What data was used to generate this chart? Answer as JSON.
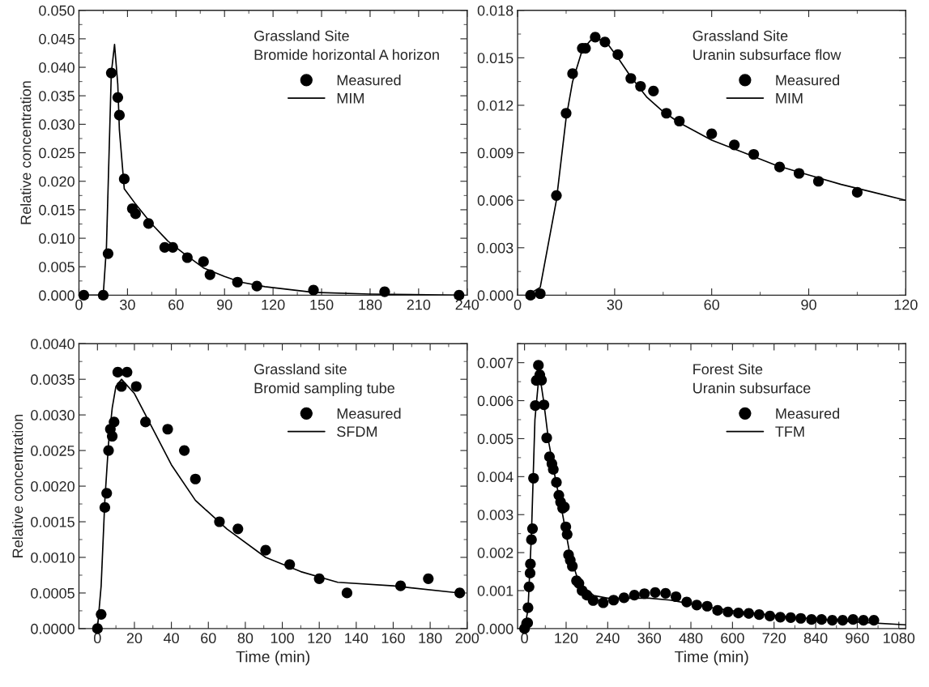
{
  "chart_data": [
    {
      "type": "scatter",
      "ylabel": "Relative concentration",
      "annotations": [
        "Grassland Site\nBromide horizontal A horizon"
      ],
      "legend": "top right",
      "xlim": [
        0,
        240
      ],
      "xticks": [
        0,
        30,
        60,
        90,
        120,
        150,
        180,
        210,
        240
      ],
      "ylim": [
        0,
        0.05
      ],
      "yticks": [
        {
          "value": 0,
          "label": "0.000"
        },
        {
          "value": 0.005,
          "label": "0.005"
        },
        {
          "value": 0.01,
          "label": "0.010"
        },
        {
          "value": 0.015,
          "label": "0.015"
        },
        {
          "value": 0.02,
          "label": "0.020"
        },
        {
          "value": 0.025,
          "label": "0.025"
        },
        {
          "value": 0.03,
          "label": "0.030"
        },
        {
          "value": 0.035,
          "label": "0.035"
        },
        {
          "value": 0.04,
          "label": "0.040"
        },
        {
          "value": 0.045,
          "label": "0.045"
        },
        {
          "value": 0.05,
          "label": "0.050"
        }
      ],
      "series": [
        {
          "name": "Measured",
          "marker": "circle",
          "color": "#000000",
          "x": [
            3,
            15,
            18,
            20,
            24,
            25,
            28,
            33,
            35,
            43,
            53,
            58,
            67,
            77,
            81,
            98,
            110,
            145,
            189,
            235
          ],
          "values": [
            0,
            0,
            0.0073,
            0.039,
            0.0347,
            0.0316,
            0.0204,
            0.0152,
            0.0143,
            0.0126,
            0.0084,
            0.0084,
            0.0066,
            0.0059,
            0.0036,
            0.0023,
            0.0016,
            0.0009,
            0.0006,
            0
          ]
        },
        {
          "name": "MIM",
          "type": "line",
          "color": "#000000",
          "x": [
            0,
            15,
            17,
            20,
            22,
            24,
            25,
            28,
            35,
            45,
            55,
            65,
            77,
            90,
            100,
            115,
            145,
            180,
            235
          ],
          "values": [
            0,
            0,
            0.0085,
            0.039,
            0.044,
            0.037,
            0.029,
            0.0187,
            0.016,
            0.0125,
            0.0095,
            0.0073,
            0.0048,
            0.0033,
            0.0023,
            0.0015,
            0.0005,
            0.0002,
            0
          ]
        }
      ]
    },
    {
      "type": "scatter",
      "annotations": [
        "Grassland Site\nUranin subsurface flow"
      ],
      "legend": "top right",
      "xlim": [
        0,
        120
      ],
      "xticks": [
        0,
        30,
        60,
        90,
        120
      ],
      "ylim": [
        0,
        0.018
      ],
      "yticks": [
        {
          "value": 0,
          "label": "0.000"
        },
        {
          "value": 0.003,
          "label": "0.003"
        },
        {
          "value": 0.006,
          "label": "0.006"
        },
        {
          "value": 0.009,
          "label": "0.009"
        },
        {
          "value": 0.012,
          "label": "0.012"
        },
        {
          "value": 0.015,
          "label": "0.015"
        },
        {
          "value": 0.018,
          "label": "0.018"
        }
      ],
      "series": [
        {
          "name": "Measured",
          "marker": "circle",
          "color": "#000000",
          "x": [
            4,
            7,
            12,
            15,
            17,
            20,
            21,
            24,
            27,
            31,
            35,
            38,
            42,
            46,
            50,
            60,
            67,
            73,
            81,
            87,
            93,
            105
          ],
          "values": [
            0,
            0.0001,
            0.0063,
            0.0115,
            0.014,
            0.0156,
            0.0156,
            0.0163,
            0.016,
            0.0152,
            0.0137,
            0.0132,
            0.0129,
            0.0115,
            0.011,
            0.0102,
            0.0095,
            0.0089,
            0.0081,
            0.0077,
            0.0072,
            0.0065
          ]
        },
        {
          "name": "MIM",
          "type": "line",
          "color": "#000000",
          "x": [
            3,
            7,
            12,
            15,
            17,
            20,
            23,
            27,
            31,
            35,
            40,
            45,
            50,
            60,
            70,
            80,
            90,
            100,
            110,
            120
          ],
          "values": [
            0,
            0.0005,
            0.006,
            0.0112,
            0.0135,
            0.0155,
            0.0162,
            0.0161,
            0.015,
            0.0138,
            0.0125,
            0.0116,
            0.0109,
            0.0098,
            0.009,
            0.0082,
            0.0076,
            0.007,
            0.0065,
            0.006
          ]
        }
      ]
    },
    {
      "type": "scatter",
      "xlabel": "Time (min)",
      "ylabel": "Relative concentration",
      "annotations": [
        "Grassland site\nBromid sampling tube"
      ],
      "legend": "top right",
      "xlim": [
        -10,
        200
      ],
      "xticks": [
        0,
        20,
        40,
        60,
        80,
        100,
        120,
        140,
        160,
        180,
        200
      ],
      "ylim": [
        0,
        0.004
      ],
      "yticks": [
        {
          "value": 0,
          "label": "0.0000"
        },
        {
          "value": 0.0005,
          "label": "0.0005"
        },
        {
          "value": 0.001,
          "label": "0.0010"
        },
        {
          "value": 0.0015,
          "label": "0.0015"
        },
        {
          "value": 0.002,
          "label": "0.0020"
        },
        {
          "value": 0.0025,
          "label": "0.0025"
        },
        {
          "value": 0.003,
          "label": "0.0030"
        },
        {
          "value": 0.0035,
          "label": "0.0035"
        },
        {
          "value": 0.004,
          "label": "0.0040"
        }
      ],
      "series": [
        {
          "name": "Measured",
          "marker": "circle",
          "color": "#000000",
          "x": [
            0,
            2,
            4,
            5,
            6,
            7,
            8,
            9,
            11,
            13,
            16,
            21,
            26,
            38,
            47,
            53,
            66,
            76,
            91,
            104,
            120,
            135,
            164,
            179,
            196
          ],
          "values": [
            0,
            0.0002,
            0.0017,
            0.0019,
            0.0025,
            0.0028,
            0.0027,
            0.0029,
            0.0036,
            0.0034,
            0.0036,
            0.0034,
            0.0029,
            0.0028,
            0.0025,
            0.0021,
            0.0015,
            0.0014,
            0.0011,
            0.0009,
            0.0007,
            0.0005,
            0.0006,
            0.0007,
            0.0005
          ]
        },
        {
          "name": "SFDM",
          "type": "line",
          "color": "#000000",
          "x": [
            0,
            2,
            4,
            6,
            8,
            10,
            13,
            20,
            30,
            40,
            53,
            70,
            91,
            110,
            130,
            160,
            196
          ],
          "values": [
            0,
            0.0006,
            0.0018,
            0.0026,
            0.0031,
            0.0034,
            0.0035,
            0.0033,
            0.0028,
            0.0023,
            0.0018,
            0.0014,
            0.001,
            0.0008,
            0.00065,
            0.0006,
            0.0005
          ]
        }
      ]
    },
    {
      "type": "scatter",
      "xlabel": "Time (min)",
      "annotations": [
        "Forest Site\nUranin subsurface"
      ],
      "legend": "top right",
      "xlim": [
        -20,
        1100
      ],
      "xticks": [
        0,
        120,
        240,
        360,
        480,
        600,
        720,
        840,
        960,
        1080
      ],
      "ylim": [
        0,
        0.0075
      ],
      "yticks": [
        {
          "value": 0,
          "label": "0.000"
        },
        {
          "value": 0.001,
          "label": "0.001"
        },
        {
          "value": 0.002,
          "label": "0.002"
        },
        {
          "value": 0.003,
          "label": "0.003"
        },
        {
          "value": 0.004,
          "label": "0.004"
        },
        {
          "value": 0.005,
          "label": "0.005"
        },
        {
          "value": 0.006,
          "label": "0.006"
        },
        {
          "value": 0.007,
          "label": "0.007"
        }
      ],
      "series": [
        {
          "name": "Measured",
          "marker": "circle",
          "color": "#000000",
          "x": [
            0,
            6,
            9,
            10,
            13,
            16,
            17,
            20,
            23,
            26,
            31,
            34,
            40,
            44,
            49,
            56,
            64,
            72,
            79,
            83,
            92,
            99,
            104,
            110,
            115,
            119,
            123,
            127,
            132,
            138,
            150,
            157,
            166,
            180,
            198,
            227,
            257,
            287,
            317,
            346,
            377,
            407,
            437,
            468,
            497,
            527,
            557,
            587,
            617,
            647,
            677,
            708,
            738,
            768,
            797,
            828,
            857,
            888,
            918,
            948,
            978,
            1008
          ],
          "values": [
            0,
            0.00014,
            0.00015,
            0.00055,
            0.0011,
            0.00146,
            0.0017,
            0.00234,
            0.00263,
            0.00396,
            0.00587,
            0.00653,
            0.00693,
            0.00668,
            0.00654,
            0.00589,
            0.00502,
            0.00452,
            0.00434,
            0.00419,
            0.00385,
            0.00351,
            0.00333,
            0.00317,
            0.0032,
            0.00268,
            0.00248,
            0.00194,
            0.0018,
            0.00164,
            0.00126,
            0.00119,
            0.001,
            0.00088,
            0.00074,
            0.00068,
            0.00075,
            0.00081,
            0.00088,
            0.00092,
            0.00095,
            0.00093,
            0.00084,
            0.0007,
            0.00062,
            0.00059,
            0.00048,
            0.00044,
            0.00041,
            0.0004,
            0.00037,
            0.00033,
            0.0003,
            0.00029,
            0.00027,
            0.00024,
            0.00024,
            0.00022,
            0.00022,
            0.00024,
            0.00022,
            0.00022
          ]
        },
        {
          "name": "TFM",
          "type": "line",
          "color": "#000000",
          "x": [
            0,
            10,
            20,
            30,
            40,
            45,
            55,
            70,
            90,
            110,
            130,
            150,
            170,
            200,
            240,
            300,
            360,
            420,
            480,
            540,
            600,
            720,
            840,
            960,
            1100
          ],
          "values": [
            0,
            0.0005,
            0.0025,
            0.0055,
            0.0065,
            0.0066,
            0.006,
            0.0049,
            0.0039,
            0.003,
            0.002,
            0.0014,
            0.0011,
            0.00087,
            0.0008,
            0.0008,
            0.0008,
            0.00075,
            0.00065,
            0.00055,
            0.00047,
            0.00035,
            0.00025,
            0.00017,
            0.0001
          ]
        }
      ]
    }
  ]
}
